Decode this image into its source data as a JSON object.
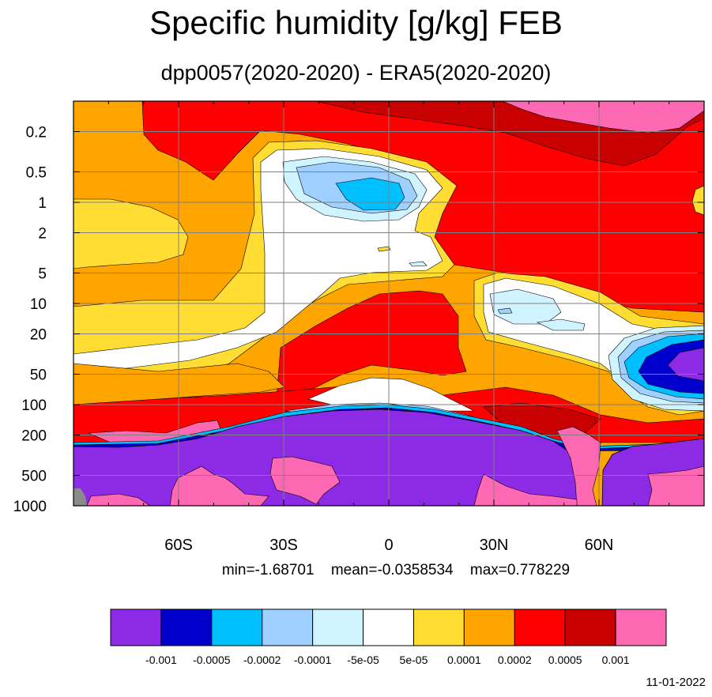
{
  "title": "Specific humidity [g/kg] FEB",
  "subtitle": "dpp0057(2020-2020) - ERA5(2020-2020)",
  "stats": {
    "min": "min=-1.68701",
    "mean": "mean=-0.0358534",
    "max": "max=0.778229"
  },
  "date": "11-01-2022",
  "chart_data": {
    "type": "heatmap",
    "title": "Specific humidity [g/kg] FEB",
    "subtitle": "dpp0057(2020-2020) - ERA5(2020-2020)",
    "x_axis": {
      "range": [
        -90,
        90
      ],
      "tick_values": [
        -60,
        -30,
        0,
        30,
        60
      ],
      "tick_labels": [
        "60S",
        "30S",
        "0",
        "30N",
        "60N"
      ]
    },
    "y_axis": {
      "scale": "log",
      "inverted": true,
      "range": [
        0.1,
        1000
      ],
      "tick_values": [
        0.2,
        0.5,
        1,
        2,
        5,
        10,
        20,
        50,
        100,
        200,
        500,
        1000
      ],
      "tick_labels": [
        "0.2",
        "0.5",
        "1",
        "2",
        "5",
        "10",
        "20",
        "50",
        "100",
        "200",
        "500",
        "1000"
      ]
    },
    "grid": true,
    "colorbar": {
      "colors": [
        "#8c2ae6",
        "#0000cc",
        "#00bfff",
        "#a0d0ff",
        "#d0f4ff",
        "#ffffff",
        "#ffdd33",
        "#ffa500",
        "#ff0000",
        "#c80000",
        "#ff69b4"
      ],
      "labels": [
        "-0.001",
        "-0.0005",
        "-0.0002",
        "-0.0001",
        "-5e-05",
        "5e-05",
        "0.0001",
        "0.0002",
        "0.0005",
        "0.001"
      ]
    }
  }
}
